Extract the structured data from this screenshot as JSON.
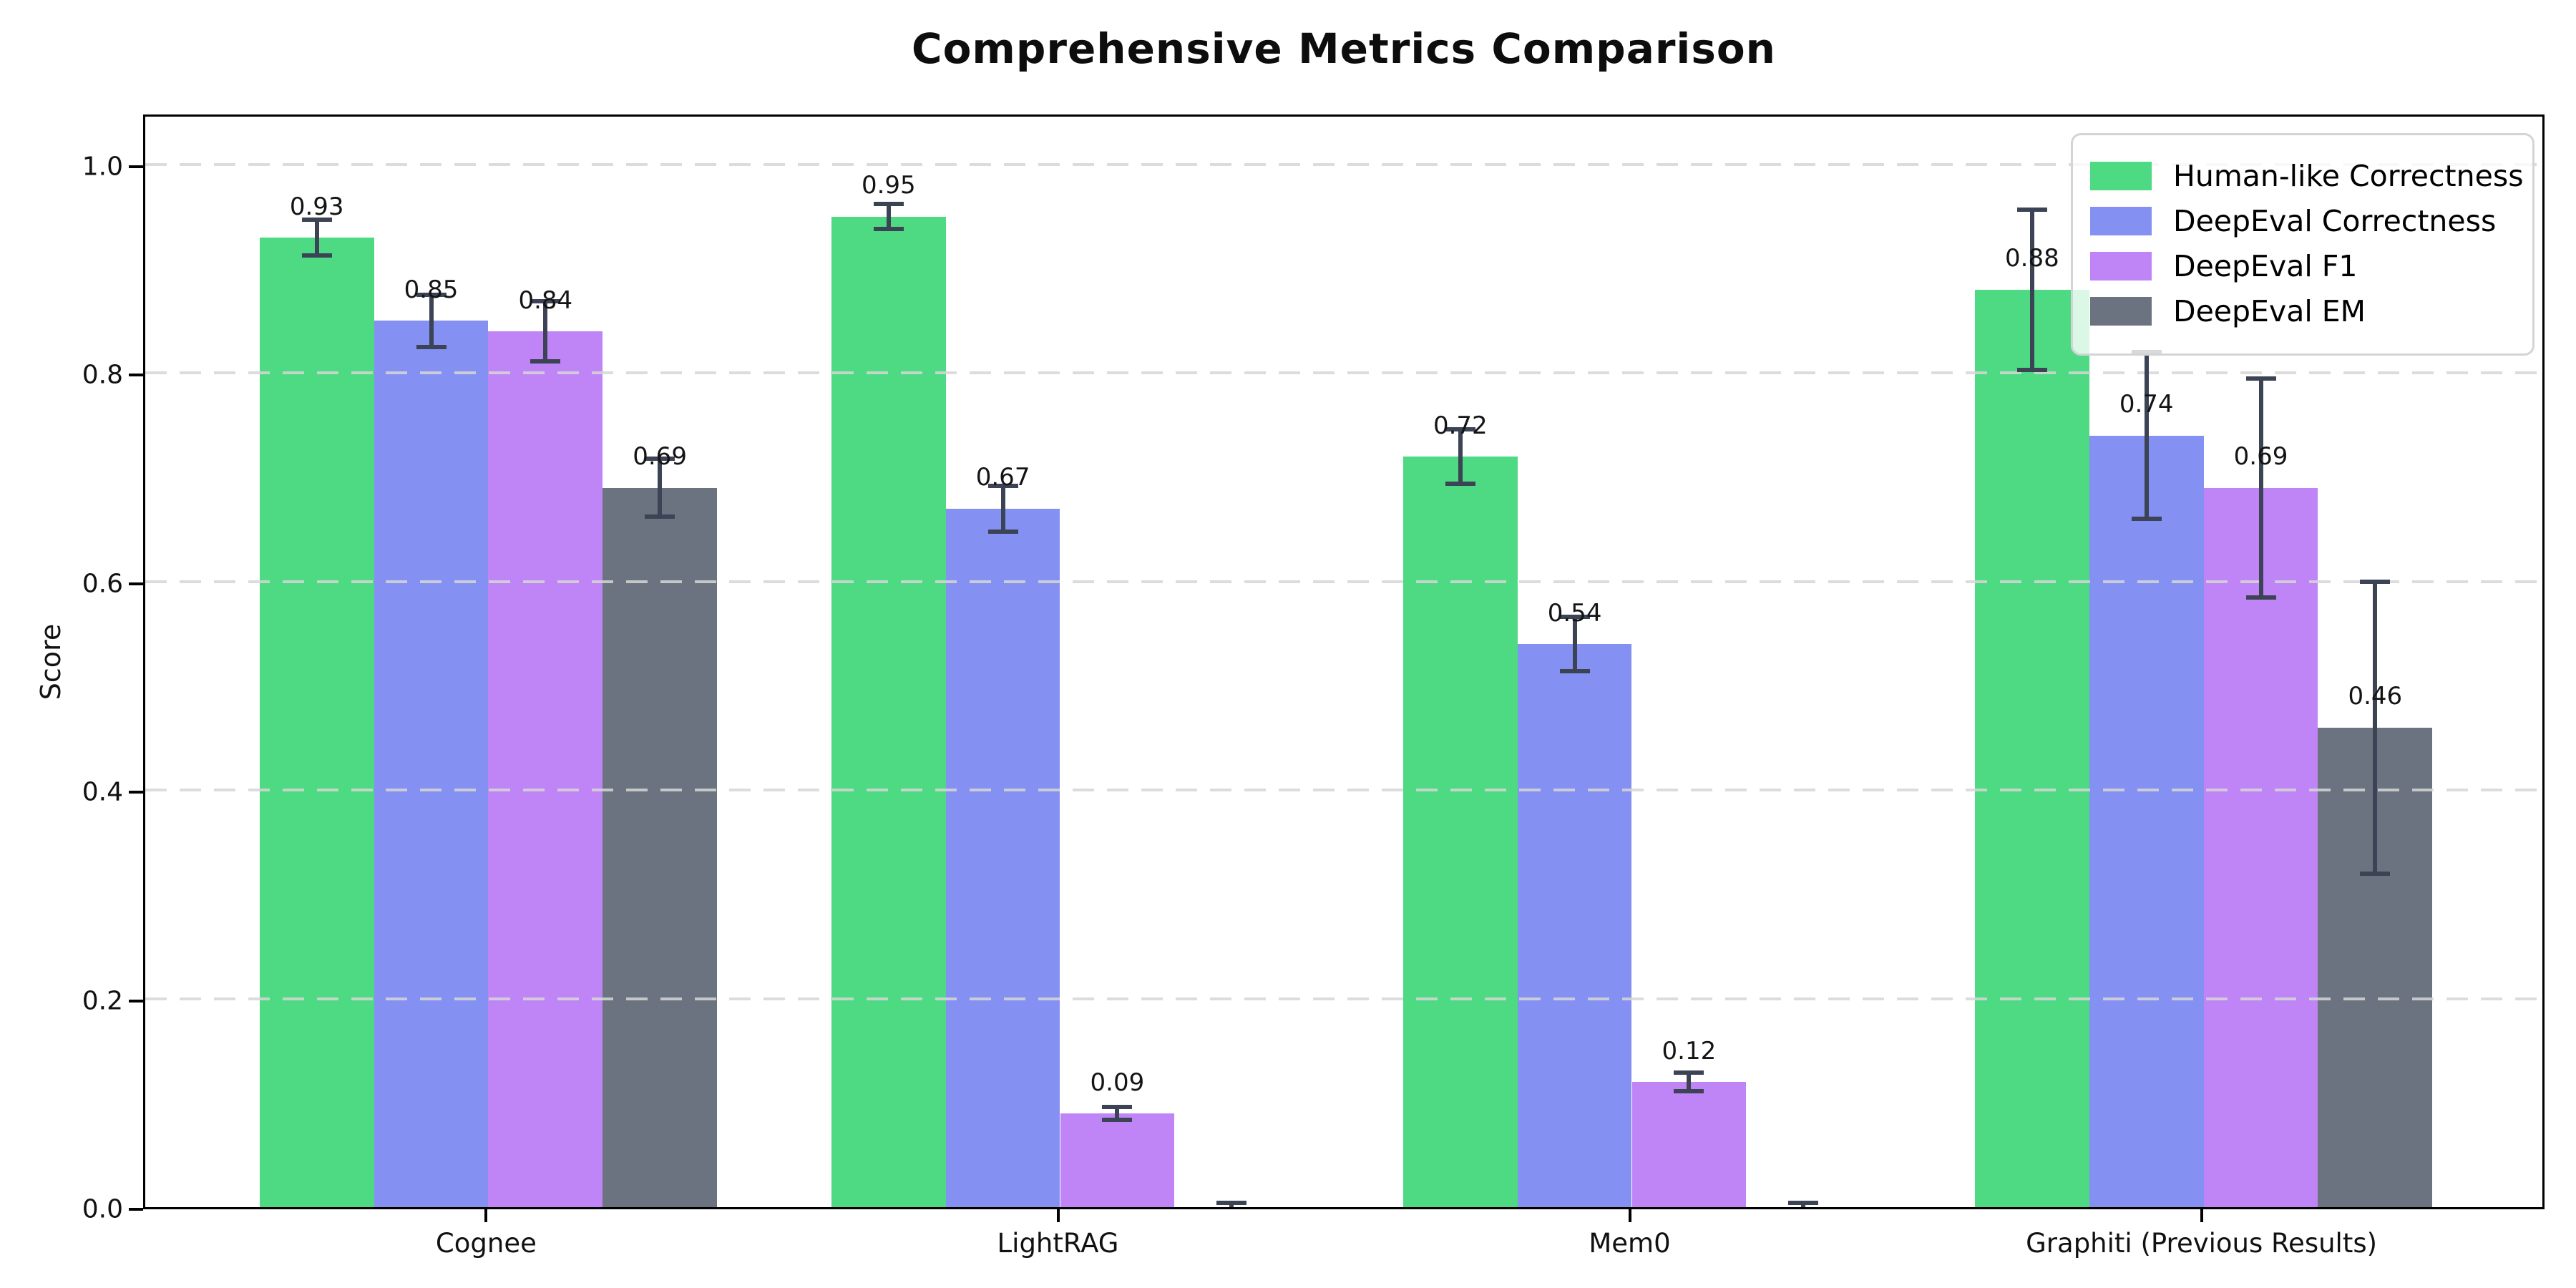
{
  "chart_data": {
    "type": "bar",
    "title": "Comprehensive Metrics Comparison",
    "ylabel": "Score",
    "xlabel": "",
    "categories": [
      "Cognee",
      "LightRAG",
      "Mem0",
      "Graphiti (Previous Results)"
    ],
    "series": [
      {
        "name": "Human-like Correctness",
        "color": "#4dda82",
        "values": [
          0.93,
          0.95,
          0.72,
          0.88
        ],
        "errors": [
          0.017,
          0.012,
          0.026,
          0.077
        ],
        "labels": [
          "0.93",
          "0.95",
          "0.72",
          "0.88"
        ]
      },
      {
        "name": "DeepEval Correctness",
        "color": "#8490f2",
        "values": [
          0.85,
          0.67,
          0.54,
          0.74
        ],
        "errors": [
          0.025,
          0.022,
          0.026,
          0.08
        ],
        "labels": [
          "0.85",
          "0.67",
          "0.54",
          "0.74"
        ]
      },
      {
        "name": "DeepEval F1",
        "color": "#bf84f5",
        "values": [
          0.84,
          0.09,
          0.12,
          0.69
        ],
        "errors": [
          0.029,
          0.006,
          0.009,
          0.105
        ],
        "labels": [
          "0.84",
          "0.09",
          "0.12",
          "0.69"
        ]
      },
      {
        "name": "DeepEval EM",
        "color": "#6b7280",
        "values": [
          0.69,
          0.0,
          0.0,
          0.46
        ],
        "errors": [
          0.028,
          0.004,
          0.004,
          0.14
        ],
        "labels": [
          "0.69",
          "",
          "",
          "0.46"
        ]
      }
    ],
    "ylim": [
      0,
      1.05
    ],
    "yticks": [
      "0.0",
      "0.2",
      "0.4",
      "0.6",
      "0.8",
      "1.0"
    ],
    "grid": "horizontal-dashed",
    "legend_position": "upper right",
    "error_bar_color": "#3b4354",
    "grid_color": "#d6d6d6",
    "axis_color": "#000000",
    "background_color": "#ffffff"
  }
}
